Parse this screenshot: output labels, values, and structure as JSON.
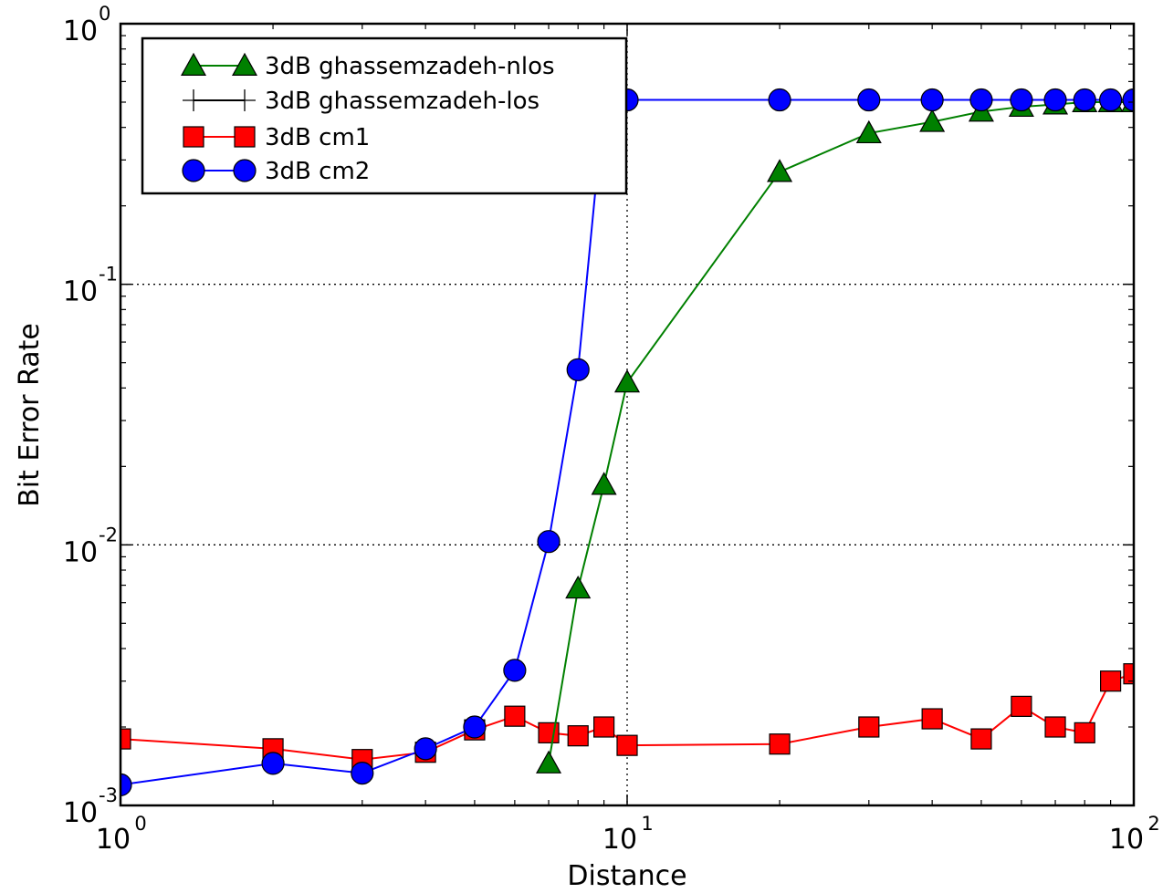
{
  "chart_data": {
    "type": "line",
    "xscale": "log",
    "yscale": "log",
    "xlabel": "Distance",
    "ylabel": "Bit Error Rate",
    "xlim": [
      1,
      100
    ],
    "ylim": [
      0.001,
      1
    ],
    "grid": "major, dotted",
    "legend_position": "upper-left",
    "x_ticks": [
      {
        "base": "10",
        "exp": "0",
        "value": 1
      },
      {
        "base": "10",
        "exp": "1",
        "value": 10
      },
      {
        "base": "10",
        "exp": "2",
        "value": 100
      }
    ],
    "y_ticks": [
      {
        "base": "10",
        "exp": "-3",
        "value": 0.001
      },
      {
        "base": "10",
        "exp": "-2",
        "value": 0.01
      },
      {
        "base": "10",
        "exp": "-1",
        "value": 0.1
      },
      {
        "base": "10",
        "exp": "0",
        "value": 1
      }
    ],
    "series": [
      {
        "name": "3dB ghassemzadeh-nlos",
        "color": "#008000",
        "marker": "triangle",
        "x": [
          7,
          8,
          9,
          10,
          20,
          30,
          40,
          50,
          60,
          70,
          80,
          90,
          100
        ],
        "y": [
          0.00145,
          0.0068,
          0.017,
          0.042,
          0.27,
          0.38,
          0.42,
          0.46,
          0.48,
          0.49,
          0.5,
          0.5,
          0.5
        ]
      },
      {
        "name": "3dB ghassemzadeh-los",
        "color": "#000000",
        "marker": "plus",
        "x": [],
        "y": []
      },
      {
        "name": "3dB cm1",
        "color": "#ff0000",
        "marker": "square",
        "x": [
          1,
          2,
          3,
          4,
          5,
          6,
          7,
          8,
          9,
          10,
          20,
          30,
          40,
          50,
          60,
          70,
          80,
          90,
          100
        ],
        "y": [
          0.0018,
          0.00165,
          0.0015,
          0.0016,
          0.00195,
          0.0022,
          0.0019,
          0.00185,
          0.002,
          0.0017,
          0.00172,
          0.002,
          0.00215,
          0.0018,
          0.0024,
          0.002,
          0.0019,
          0.003,
          0.0032
        ]
      },
      {
        "name": "3dB cm2",
        "color": "#0000ff",
        "marker": "circle",
        "x": [
          1,
          2,
          3,
          4,
          5,
          6,
          7,
          8,
          9,
          10,
          20,
          30,
          40,
          50,
          60,
          70,
          80,
          90,
          100
        ],
        "y": [
          0.0012,
          0.00145,
          0.00133,
          0.00165,
          0.002,
          0.0033,
          0.0103,
          0.047,
          0.5,
          0.51,
          0.51,
          0.51,
          0.51,
          0.51,
          0.51,
          0.51,
          0.51,
          0.51,
          0.51
        ]
      }
    ]
  }
}
